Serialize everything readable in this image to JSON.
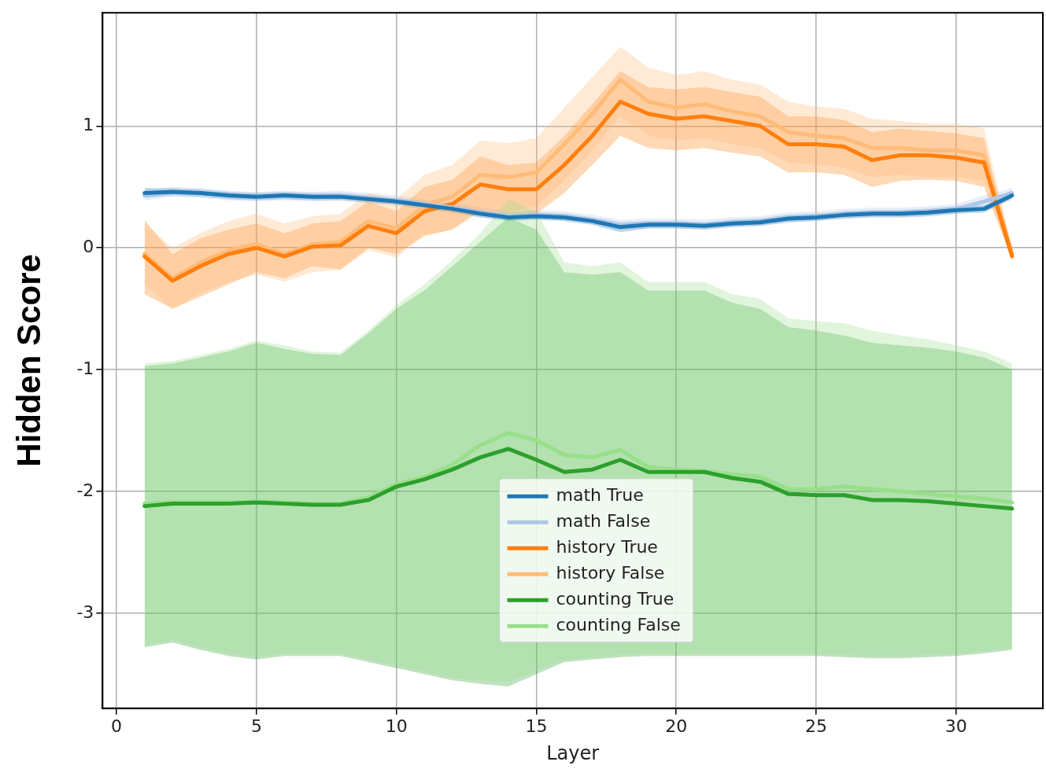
{
  "chart_data": {
    "type": "line",
    "xlabel": "Layer",
    "ylabel": "Hidden Score",
    "x": [
      1,
      2,
      3,
      4,
      5,
      6,
      7,
      8,
      9,
      10,
      11,
      12,
      13,
      14,
      15,
      16,
      17,
      18,
      19,
      20,
      21,
      22,
      23,
      24,
      25,
      26,
      27,
      28,
      29,
      30,
      31,
      32
    ],
    "xlim": [
      -0.5,
      33.1
    ],
    "xticks": [
      0,
      5,
      10,
      15,
      20,
      25,
      30
    ],
    "ylim": [
      -3.78,
      1.93
    ],
    "yticks": [
      -3,
      -2,
      -1,
      0,
      1
    ],
    "grid": true,
    "legend": "bottom",
    "marker": "none",
    "line_style": "solid",
    "series": [
      {
        "name": "math True",
        "color": "#1f77b4",
        "values": [
          0.45,
          0.46,
          0.45,
          0.43,
          0.42,
          0.43,
          0.42,
          0.42,
          0.4,
          0.38,
          0.35,
          0.32,
          0.28,
          0.25,
          0.26,
          0.25,
          0.22,
          0.17,
          0.19,
          0.19,
          0.18,
          0.2,
          0.21,
          0.24,
          0.25,
          0.27,
          0.28,
          0.28,
          0.29,
          0.31,
          0.32,
          0.43
        ],
        "lower": [
          0.41,
          0.43,
          0.42,
          0.4,
          0.39,
          0.4,
          0.39,
          0.39,
          0.37,
          0.35,
          0.32,
          0.29,
          0.25,
          0.22,
          0.23,
          0.22,
          0.19,
          0.13,
          0.16,
          0.16,
          0.15,
          0.17,
          0.18,
          0.21,
          0.22,
          0.24,
          0.25,
          0.25,
          0.26,
          0.28,
          0.29,
          0.4
        ],
        "upper": [
          0.49,
          0.49,
          0.48,
          0.46,
          0.45,
          0.46,
          0.45,
          0.45,
          0.43,
          0.41,
          0.38,
          0.35,
          0.31,
          0.28,
          0.29,
          0.28,
          0.25,
          0.21,
          0.22,
          0.22,
          0.21,
          0.23,
          0.24,
          0.27,
          0.28,
          0.3,
          0.31,
          0.31,
          0.32,
          0.34,
          0.35,
          0.46
        ]
      },
      {
        "name": "math False",
        "color": "#aec7e8",
        "values": [
          0.43,
          0.46,
          0.45,
          0.43,
          0.42,
          0.43,
          0.42,
          0.43,
          0.41,
          0.39,
          0.36,
          0.33,
          0.29,
          0.26,
          0.27,
          0.26,
          0.23,
          0.18,
          0.2,
          0.2,
          0.19,
          0.21,
          0.22,
          0.25,
          0.26,
          0.28,
          0.29,
          0.29,
          0.3,
          0.32,
          0.38,
          0.45
        ],
        "lower": [
          0.39,
          0.42,
          0.41,
          0.39,
          0.38,
          0.39,
          0.38,
          0.39,
          0.37,
          0.35,
          0.32,
          0.29,
          0.25,
          0.22,
          0.23,
          0.22,
          0.19,
          0.13,
          0.16,
          0.16,
          0.15,
          0.17,
          0.18,
          0.21,
          0.22,
          0.24,
          0.25,
          0.25,
          0.26,
          0.28,
          0.33,
          0.41
        ],
        "upper": [
          0.47,
          0.5,
          0.49,
          0.47,
          0.46,
          0.47,
          0.46,
          0.47,
          0.45,
          0.43,
          0.4,
          0.37,
          0.33,
          0.3,
          0.31,
          0.3,
          0.27,
          0.23,
          0.24,
          0.24,
          0.23,
          0.25,
          0.26,
          0.29,
          0.3,
          0.32,
          0.33,
          0.33,
          0.34,
          0.36,
          0.43,
          0.49
        ]
      },
      {
        "name": "history True",
        "color": "#ff7f0e",
        "values": [
          -0.07,
          -0.27,
          -0.15,
          -0.05,
          0.0,
          -0.07,
          0.01,
          0.02,
          0.18,
          0.12,
          0.3,
          0.36,
          0.52,
          0.48,
          0.48,
          0.68,
          0.92,
          1.2,
          1.1,
          1.06,
          1.08,
          1.04,
          1.0,
          0.85,
          0.85,
          0.83,
          0.72,
          0.76,
          0.76,
          0.74,
          0.7,
          -0.07
        ],
        "lower": [
          -0.38,
          -0.5,
          -0.4,
          -0.3,
          -0.2,
          -0.25,
          -0.15,
          -0.18,
          0.0,
          -0.05,
          0.1,
          0.15,
          0.3,
          0.28,
          0.28,
          0.45,
          0.68,
          0.92,
          0.82,
          0.8,
          0.82,
          0.78,
          0.75,
          0.62,
          0.62,
          0.6,
          0.5,
          0.55,
          0.56,
          0.55,
          0.5,
          -0.1
        ],
        "upper": [
          0.23,
          -0.05,
          0.08,
          0.15,
          0.2,
          0.12,
          0.2,
          0.22,
          0.38,
          0.3,
          0.5,
          0.56,
          0.75,
          0.68,
          0.7,
          0.92,
          1.18,
          1.45,
          1.32,
          1.3,
          1.32,
          1.28,
          1.24,
          1.08,
          1.08,
          1.05,
          0.95,
          0.98,
          0.96,
          0.94,
          0.9,
          -0.04
        ]
      },
      {
        "name": "history False",
        "color": "#ffbb78",
        "values": [
          -0.05,
          -0.25,
          -0.12,
          -0.02,
          0.03,
          -0.05,
          0.03,
          0.05,
          0.22,
          0.16,
          0.35,
          0.42,
          0.6,
          0.58,
          0.62,
          0.85,
          1.1,
          1.38,
          1.2,
          1.15,
          1.18,
          1.12,
          1.08,
          0.95,
          0.92,
          0.9,
          0.82,
          0.82,
          0.8,
          0.8,
          0.76,
          -0.05
        ],
        "lower": [
          -0.3,
          -0.5,
          -0.37,
          -0.28,
          -0.22,
          -0.28,
          -0.2,
          -0.18,
          -0.02,
          -0.08,
          0.1,
          0.15,
          0.32,
          0.3,
          0.34,
          0.55,
          0.8,
          1.08,
          0.92,
          0.88,
          0.9,
          0.85,
          0.82,
          0.7,
          0.68,
          0.66,
          0.58,
          0.6,
          0.58,
          0.58,
          0.55,
          -0.1
        ],
        "upper": [
          0.2,
          0.0,
          0.12,
          0.22,
          0.28,
          0.2,
          0.26,
          0.28,
          0.45,
          0.4,
          0.6,
          0.68,
          0.88,
          0.86,
          0.9,
          1.15,
          1.4,
          1.65,
          1.48,
          1.42,
          1.45,
          1.38,
          1.34,
          1.2,
          1.16,
          1.14,
          1.06,
          1.04,
          1.02,
          1.02,
          0.98,
          0.0
        ]
      },
      {
        "name": "counting True",
        "color": "#2ca02c",
        "values": [
          -2.12,
          -2.1,
          -2.1,
          -2.1,
          -2.09,
          -2.1,
          -2.11,
          -2.11,
          -2.07,
          -1.96,
          -1.9,
          -1.82,
          -1.72,
          -1.65,
          -1.74,
          -1.84,
          -1.82,
          -1.74,
          -1.84,
          -1.84,
          -1.84,
          -1.89,
          -1.92,
          -2.02,
          -2.03,
          -2.03,
          -2.07,
          -2.07,
          -2.08,
          -2.1,
          -2.12,
          -2.14
        ],
        "lower": [
          -3.28,
          -3.24,
          -3.3,
          -3.35,
          -3.38,
          -3.35,
          -3.35,
          -3.35,
          -3.4,
          -3.45,
          -3.5,
          -3.55,
          -3.58,
          -3.6,
          -3.5,
          -3.4,
          -3.38,
          -3.36,
          -3.35,
          -3.35,
          -3.35,
          -3.35,
          -3.35,
          -3.35,
          -3.35,
          -3.36,
          -3.37,
          -3.37,
          -3.36,
          -3.35,
          -3.33,
          -3.3
        ],
        "upper": [
          -0.97,
          -0.95,
          -0.9,
          -0.85,
          -0.78,
          -0.83,
          -0.87,
          -0.88,
          -0.7,
          -0.5,
          -0.35,
          -0.15,
          0.05,
          0.25,
          0.15,
          -0.2,
          -0.22,
          -0.2,
          -0.35,
          -0.35,
          -0.35,
          -0.45,
          -0.5,
          -0.65,
          -0.68,
          -0.72,
          -0.78,
          -0.8,
          -0.82,
          -0.85,
          -0.9,
          -1.0
        ]
      },
      {
        "name": "counting False",
        "color": "#98df8a",
        "values": [
          -2.1,
          -2.09,
          -2.09,
          -2.09,
          -2.08,
          -2.09,
          -2.1,
          -2.1,
          -2.05,
          -1.94,
          -1.88,
          -1.78,
          -1.62,
          -1.52,
          -1.58,
          -1.7,
          -1.72,
          -1.66,
          -1.8,
          -1.82,
          -1.83,
          -1.86,
          -1.88,
          -1.98,
          -1.98,
          -1.96,
          -1.98,
          -2.0,
          -2.02,
          -2.04,
          -2.06,
          -2.09
        ],
        "lower": [
          -3.26,
          -3.22,
          -3.28,
          -3.33,
          -3.36,
          -3.33,
          -3.33,
          -3.33,
          -3.38,
          -3.43,
          -3.48,
          -3.53,
          -3.55,
          -3.56,
          -3.47,
          -3.38,
          -3.36,
          -3.34,
          -3.33,
          -3.33,
          -3.33,
          -3.33,
          -3.33,
          -3.33,
          -3.33,
          -3.34,
          -3.35,
          -3.35,
          -3.34,
          -3.33,
          -3.31,
          -3.28
        ],
        "upper": [
          -0.95,
          -0.93,
          -0.88,
          -0.83,
          -0.76,
          -0.8,
          -0.85,
          -0.86,
          -0.68,
          -0.47,
          -0.3,
          -0.1,
          0.12,
          0.4,
          0.3,
          -0.12,
          -0.15,
          -0.12,
          -0.28,
          -0.28,
          -0.28,
          -0.38,
          -0.42,
          -0.58,
          -0.6,
          -0.62,
          -0.68,
          -0.72,
          -0.75,
          -0.8,
          -0.85,
          -0.95
        ]
      }
    ]
  }
}
